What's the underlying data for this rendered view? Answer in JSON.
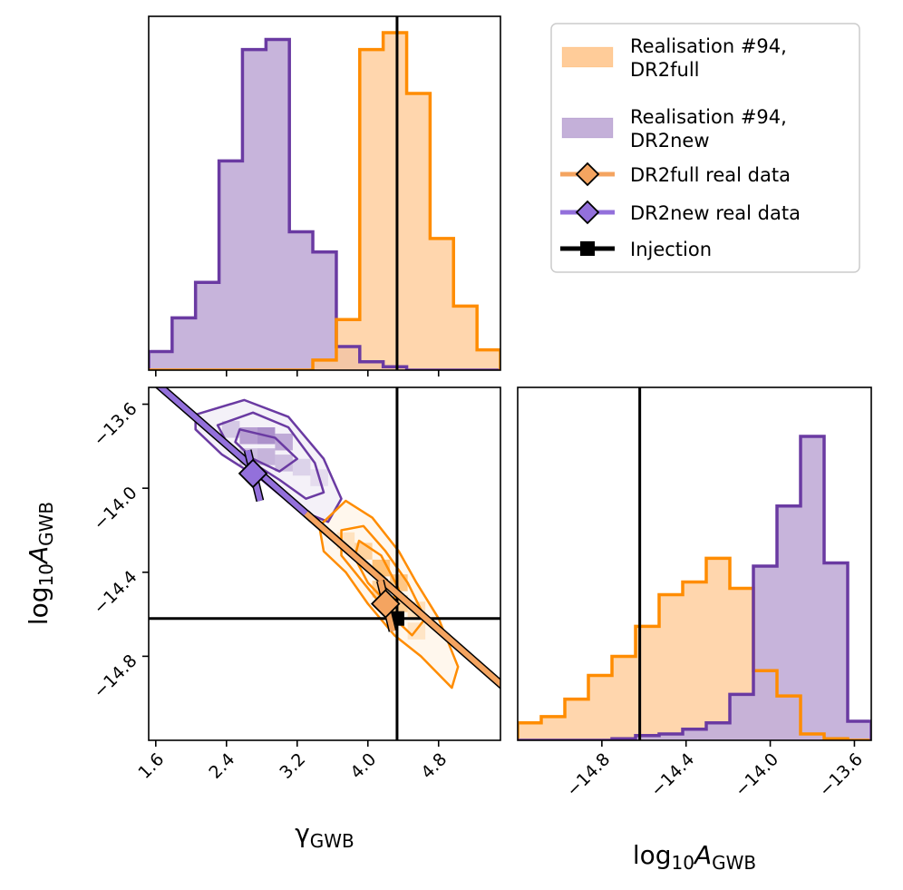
{
  "chart_data": {
    "type": "corner",
    "colors": {
      "full": "#ff8c00",
      "full_fill": "#ffcc99",
      "new": "#6a3aa2",
      "new_fill": "#c4b0d9",
      "full_real": "#f4a460",
      "new_real": "#9370db",
      "injection": "#000000"
    },
    "axes": {
      "gamma": {
        "label": "γ",
        "sub": "GWB",
        "range": [
          1.52,
          5.5
        ],
        "ticks": [
          1.6,
          2.4,
          3.2,
          4.0,
          4.8
        ],
        "tick_labels": [
          "1.6",
          "2.4",
          "3.2",
          "4.0",
          "4.8"
        ]
      },
      "log10A": {
        "label": "log",
        "sub10": "10",
        "labelA": "A",
        "sub": "GWB",
        "range": [
          -15.2,
          -13.52
        ],
        "ticks": [
          -14.8,
          -14.4,
          -14.0,
          -13.6
        ],
        "tick_labels": [
          "−14.8",
          "−14.4",
          "−14.0",
          "−13.6"
        ]
      }
    },
    "injection": {
      "gamma": 4.33,
      "log10A": -14.62
    },
    "hist_gamma": {
      "bin_edges": [
        1.52,
        1.785,
        2.05,
        2.316,
        2.581,
        2.847,
        3.112,
        3.377,
        3.643,
        3.908,
        4.173,
        4.439,
        4.704,
        4.969,
        5.235,
        5.5
      ],
      "dr2full": [
        0,
        0,
        0,
        0,
        0,
        0,
        0,
        0.03,
        0.15,
        0.95,
        1.0,
        0.82,
        0.39,
        0.19,
        0.06
      ],
      "dr2new": [
        0.055,
        0.155,
        0.26,
        0.62,
        0.95,
        0.98,
        0.41,
        0.35,
        0.07,
        0.025,
        0.01,
        0,
        0,
        0,
        0
      ]
    },
    "hist_log10A": {
      "bin_edges": [
        -15.2,
        -15.088,
        -14.976,
        -14.864,
        -14.752,
        -14.64,
        -14.528,
        -14.416,
        -14.304,
        -14.192,
        -14.08,
        -13.968,
        -13.856,
        -13.744,
        -13.632,
        -13.52
      ],
      "dr2full": [
        0.055,
        0.075,
        0.13,
        0.205,
        0.265,
        0.36,
        0.46,
        0.5,
        0.575,
        0.48,
        0.22,
        0.14,
        0.02,
        0.005,
        0
      ],
      "dr2new": [
        0,
        0,
        0,
        0,
        0.005,
        0.015,
        0.02,
        0.035,
        0.055,
        0.145,
        0.55,
        0.74,
        0.96,
        0.56,
        0.06
      ]
    },
    "contours": {
      "dr2new": [
        [
          [
            2.05,
            -13.65
          ],
          [
            2.6,
            -13.58
          ],
          [
            3.1,
            -13.66
          ],
          [
            3.5,
            -13.86
          ],
          [
            3.7,
            -14.05
          ],
          [
            3.55,
            -14.16
          ],
          [
            3.2,
            -14.1
          ],
          [
            2.8,
            -13.96
          ],
          [
            2.35,
            -13.84
          ],
          [
            2.05,
            -13.72
          ]
        ],
        [
          [
            2.3,
            -13.7
          ],
          [
            2.7,
            -13.64
          ],
          [
            3.1,
            -13.71
          ],
          [
            3.4,
            -13.88
          ],
          [
            3.5,
            -14.02
          ],
          [
            3.3,
            -14.05
          ],
          [
            3.0,
            -13.96
          ],
          [
            2.7,
            -13.88
          ],
          [
            2.4,
            -13.78
          ]
        ],
        [
          [
            2.55,
            -13.72
          ],
          [
            2.95,
            -13.76
          ],
          [
            3.2,
            -13.86
          ],
          [
            3.0,
            -13.92
          ],
          [
            2.7,
            -13.86
          ],
          [
            2.5,
            -13.78
          ]
        ]
      ],
      "dr2full": [
        [
          [
            3.45,
            -14.18
          ],
          [
            3.75,
            -14.06
          ],
          [
            4.05,
            -14.14
          ],
          [
            4.35,
            -14.3
          ],
          [
            4.55,
            -14.45
          ],
          [
            4.8,
            -14.62
          ],
          [
            5.02,
            -14.85
          ],
          [
            4.95,
            -14.95
          ],
          [
            4.6,
            -14.8
          ],
          [
            4.3,
            -14.7
          ],
          [
            4.0,
            -14.55
          ],
          [
            3.75,
            -14.4
          ],
          [
            3.5,
            -14.3
          ]
        ],
        [
          [
            3.7,
            -14.2
          ],
          [
            3.95,
            -14.18
          ],
          [
            4.2,
            -14.3
          ],
          [
            4.45,
            -14.45
          ],
          [
            4.65,
            -14.62
          ],
          [
            4.5,
            -14.7
          ],
          [
            4.2,
            -14.58
          ],
          [
            3.95,
            -14.45
          ],
          [
            3.7,
            -14.32
          ]
        ],
        [
          [
            3.9,
            -14.25
          ],
          [
            4.15,
            -14.32
          ],
          [
            4.35,
            -14.48
          ],
          [
            4.25,
            -14.56
          ],
          [
            4.0,
            -14.45
          ],
          [
            3.85,
            -14.33
          ]
        ]
      ]
    },
    "density_cells": {
      "dr2new": [
        [
          2.65,
          -13.75,
          0.8
        ],
        [
          2.85,
          -13.75,
          0.95
        ],
        [
          3.05,
          -13.78,
          0.7
        ],
        [
          2.85,
          -13.85,
          0.6
        ],
        [
          3.05,
          -13.88,
          0.5
        ],
        [
          2.45,
          -13.72,
          0.4
        ],
        [
          3.25,
          -13.9,
          0.3
        ],
        [
          2.65,
          -13.85,
          0.5
        ],
        [
          3.45,
          -13.95,
          0.2
        ]
      ],
      "dr2full": [
        [
          3.95,
          -14.3,
          0.6
        ],
        [
          4.15,
          -14.38,
          0.9
        ],
        [
          4.35,
          -14.45,
          0.8
        ],
        [
          4.15,
          -14.48,
          0.6
        ],
        [
          4.35,
          -14.55,
          0.7
        ],
        [
          3.75,
          -14.25,
          0.35
        ],
        [
          4.55,
          -14.58,
          0.4
        ],
        [
          4.55,
          -14.68,
          0.3
        ]
      ]
    },
    "real_data": {
      "dr2full": {
        "gamma": 4.2,
        "log10A": -14.55,
        "line": [
          [
            3.3,
            -14.12
          ],
          [
            5.55,
            -14.95
          ]
        ],
        "bar": [
          [
            4.14,
            -14.44
          ],
          [
            4.28,
            -14.68
          ]
        ]
      },
      "dr2new": {
        "gamma": 2.7,
        "log10A": -13.93,
        "line": [
          [
            1.55,
            -13.48
          ],
          [
            4.2,
            -14.45
          ]
        ],
        "bar": [
          [
            2.64,
            -13.82
          ],
          [
            2.78,
            -14.06
          ]
        ]
      }
    },
    "legend": {
      "placement": "top-right",
      "entries": [
        {
          "label": "Realisation #94,\nDR2full",
          "line1": "Realisation #94,",
          "line2": "DR2full",
          "kind": "patch",
          "color": "#ffcc99",
          "edge": "#ff8c00"
        },
        {
          "label": "Realisation #94,\nDR2new",
          "line1": "Realisation #94,",
          "line2": "DR2new",
          "kind": "patch",
          "color": "#c4b0d9",
          "edge": "#6a3aa2"
        },
        {
          "label": "DR2full real data",
          "kind": "diamond",
          "color": "#f4a460"
        },
        {
          "label": "DR2new real data",
          "kind": "diamond",
          "color": "#9370db"
        },
        {
          "label": "Injection",
          "kind": "square",
          "color": "#000000"
        }
      ]
    }
  }
}
